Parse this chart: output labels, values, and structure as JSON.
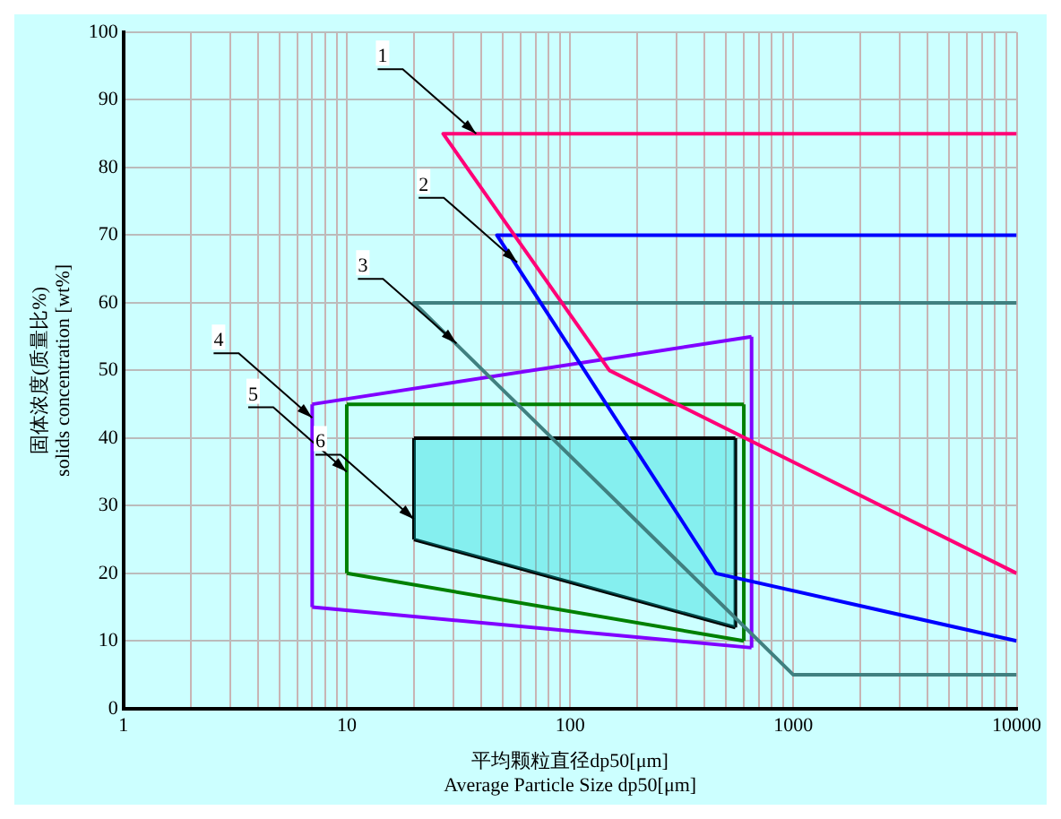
{
  "chart_data": {
    "type": "line",
    "xlabel": "平均颗粒直径dp50[μm]\nAverage Particle Size dp50[μm]",
    "ylabel": "固体浓度(质量比%)\nsolids concentration [wt%]",
    "log": "x",
    "grid": true,
    "legend": false,
    "xlim": [
      1,
      10000
    ],
    "ylim": [
      0,
      100
    ],
    "xticks": [
      1,
      {
        "value": 2,
        "label": null
      },
      {
        "value": 3,
        "label": null
      },
      {
        "value": 4,
        "label": null
      },
      {
        "value": 5,
        "label": null
      },
      {
        "value": 6,
        "label": null
      },
      {
        "value": 7,
        "label": null
      },
      {
        "value": 8,
        "label": null
      },
      {
        "value": 9,
        "label": null
      },
      10,
      {
        "value": 20,
        "label": null
      },
      {
        "value": 30,
        "label": null
      },
      {
        "value": 40,
        "label": null
      },
      {
        "value": 50,
        "label": null
      },
      {
        "value": 60,
        "label": null
      },
      {
        "value": 70,
        "label": null
      },
      {
        "value": 80,
        "label": null
      },
      {
        "value": 90,
        "label": null
      },
      100,
      {
        "value": 200,
        "label": null
      },
      {
        "value": 300,
        "label": null
      },
      {
        "value": 400,
        "label": null
      },
      {
        "value": 500,
        "label": null
      },
      {
        "value": 600,
        "label": null
      },
      {
        "value": 700,
        "label": null
      },
      {
        "value": 800,
        "label": null
      },
      {
        "value": 900,
        "label": null
      },
      1000,
      {
        "value": 2000,
        "label": null
      },
      {
        "value": 3000,
        "label": null
      },
      {
        "value": 4000,
        "label": null
      },
      {
        "value": 5000,
        "label": null
      },
      {
        "value": 6000,
        "label": null
      },
      {
        "value": 7000,
        "label": null
      },
      {
        "value": 8000,
        "label": null
      },
      {
        "value": 9000,
        "label": null
      },
      10000
    ],
    "yticks": [
      0,
      10,
      20,
      30,
      40,
      50,
      60,
      70,
      80,
      90,
      100
    ],
    "series": [
      {
        "color": "#ff0077",
        "x": [
          10000,
          27,
          150,
          10000
        ],
        "values": [
          85,
          85,
          50,
          20
        ]
      },
      {
        "color": "#0000ff",
        "x": [
          10000,
          47,
          450,
          10000
        ],
        "values": [
          70,
          70,
          20,
          10
        ]
      },
      {
        "color": "#408080",
        "x": [
          10000,
          20,
          1000,
          10000
        ],
        "values": [
          60,
          60,
          5,
          5
        ]
      },
      {
        "color": "#8000ff",
        "x": [
          7,
          650
        ],
        "values": [
          45,
          55
        ]
      },
      {
        "color": "#8000ff",
        "x": [
          7,
          650
        ],
        "values": [
          15,
          9
        ]
      },
      {
        "color": "#8000ff",
        "x": [
          7,
          7
        ],
        "values": [
          15,
          45
        ]
      },
      {
        "color": "#8000ff",
        "x": [
          650,
          650
        ],
        "values": [
          9,
          55
        ]
      },
      {
        "color": "#008000",
        "x": [
          10,
          600
        ],
        "values": [
          45,
          45
        ]
      },
      {
        "color": "#008000",
        "x": [
          10,
          600
        ],
        "values": [
          20,
          10
        ]
      },
      {
        "color": "#008000",
        "x": [
          10,
          10
        ],
        "values": [
          20,
          45
        ]
      },
      {
        "color": "#008000",
        "x": [
          600,
          600
        ],
        "values": [
          10,
          45
        ]
      },
      {
        "type": "area",
        "color": "#000000",
        "x": [
          20,
          550
        ],
        "values": [
          40,
          40
        ]
      },
      {
        "color": "#000000",
        "x": [
          20,
          550
        ],
        "values": [
          25,
          12
        ]
      },
      {
        "color": "#000000",
        "x": [
          20,
          20
        ],
        "values": [
          25,
          40
        ]
      },
      {
        "color": "#000000",
        "x": [
          550,
          550
        ],
        "values": [
          12,
          40
        ]
      }
    ],
    "annotations": [
      {
        "text": "1",
        "x": 38,
        "y": 85
      },
      {
        "text": "2",
        "x": 58,
        "y": 66
      },
      {
        "text": "3",
        "x": 31,
        "y": 54
      },
      {
        "text": "4",
        "x": 7,
        "y": 43
      },
      {
        "text": "5",
        "x": 10,
        "y": 35
      },
      {
        "text": "6",
        "x": 20,
        "y": 28
      }
    ]
  }
}
